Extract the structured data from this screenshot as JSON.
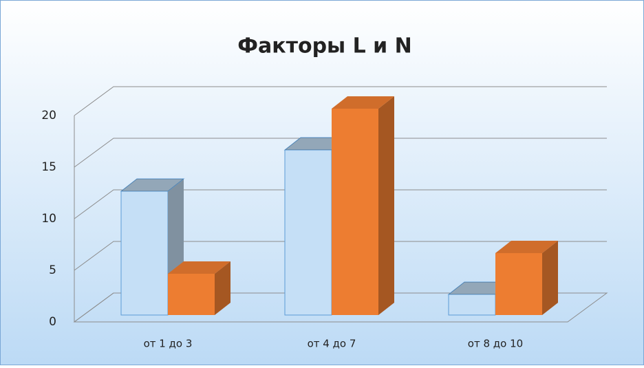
{
  "chart_data": {
    "type": "bar3d",
    "title": "Факторы L и N",
    "categories": [
      "от 1 до 3",
      "от 4 до 7",
      "от 8 до 10"
    ],
    "series": [
      {
        "color": "#c5dff6",
        "values": [
          12,
          16,
          2
        ]
      },
      {
        "color": "#ed7d31",
        "values": [
          4,
          20,
          6
        ]
      }
    ],
    "ylim": [
      0,
      20
    ],
    "yticks": [
      0,
      5,
      10,
      15,
      20
    ],
    "grid": true
  }
}
